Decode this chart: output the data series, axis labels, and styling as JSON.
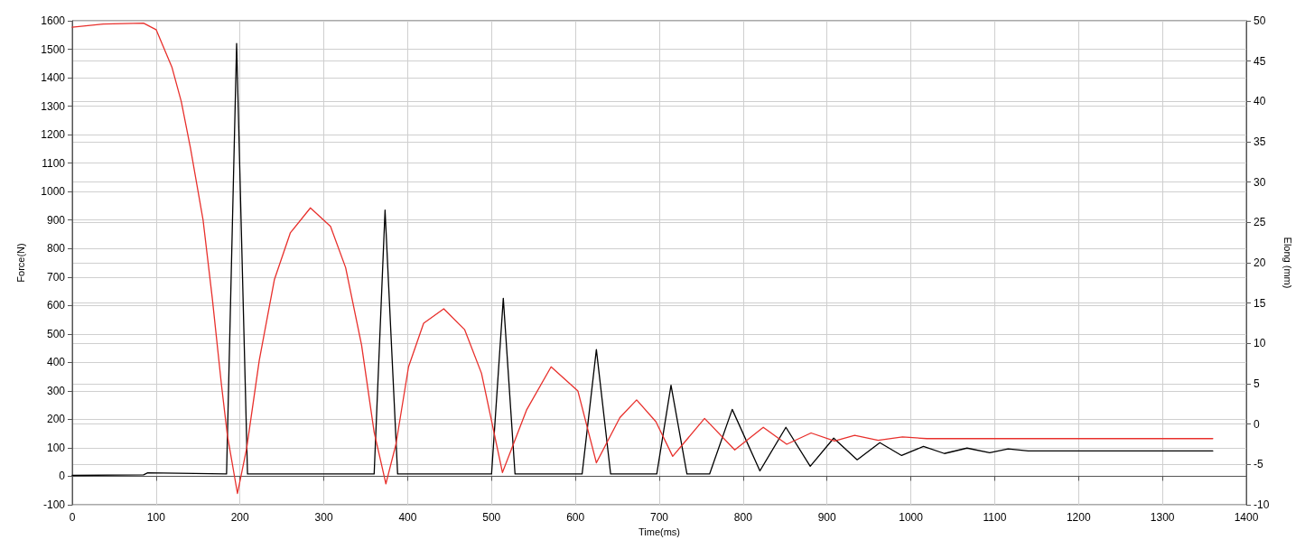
{
  "chart_data": {
    "type": "line",
    "xlabel": "Time(ms)",
    "ylabel": "Force(N)",
    "y2label": "Elong (mm)",
    "xlim": [
      0,
      1400
    ],
    "xticks": [
      0,
      100,
      200,
      300,
      400,
      500,
      600,
      700,
      800,
      900,
      1000,
      1100,
      1200,
      1300,
      1400
    ],
    "ylim": [
      -100,
      1600
    ],
    "yticks": [
      -100,
      0,
      100,
      200,
      300,
      400,
      500,
      600,
      700,
      800,
      900,
      1000,
      1100,
      1200,
      1300,
      1400,
      1500,
      1600
    ],
    "y2lim": [
      -10,
      50
    ],
    "y2ticks": [
      -10,
      -5,
      0,
      5,
      10,
      15,
      20,
      25,
      30,
      35,
      40,
      45,
      50
    ],
    "grid": true,
    "marker": "none",
    "line_style": "solid",
    "series": [
      {
        "color": "#000000",
        "x": [
          0,
          85,
          90,
          184,
          196,
          209,
          360,
          373,
          388,
          500,
          514,
          528,
          608,
          625,
          642,
          697,
          714,
          733,
          760,
          787,
          820,
          851,
          880,
          908,
          936,
          963,
          989,
          1015,
          1040,
          1067,
          1094,
          1116,
          1140,
          1360
        ],
        "values": [
          3,
          5,
          12,
          8,
          1520,
          8,
          8,
          935,
          8,
          8,
          625,
          8,
          8,
          445,
          8,
          8,
          320,
          8,
          8,
          235,
          19,
          172,
          35,
          134,
          58,
          118,
          73,
          105,
          80,
          99,
          83,
          96,
          89,
          89
        ]
      },
      {
        "color": "#e8302c",
        "axis": "y2",
        "x": [
          0,
          37,
          85,
          100,
          119,
          130,
          141,
          156,
          167,
          178,
          185,
          197,
          208,
          223,
          241,
          260,
          284,
          308,
          326,
          345,
          360,
          374,
          386,
          401,
          419,
          443,
          468,
          488,
          513,
          542,
          571,
          603,
          625,
          653,
          673,
          696,
          716,
          754,
          790,
          824,
          852,
          881,
          909,
          933,
          961,
          990,
          1019,
          1360
        ],
        "values": [
          49.2,
          49.6,
          49.7,
          48.9,
          44.2,
          40.0,
          34.2,
          25.3,
          15.6,
          4.8,
          -1.4,
          -8.6,
          -3.0,
          7.9,
          17.9,
          23.7,
          26.8,
          24.5,
          19.4,
          9.8,
          -1.0,
          -7.4,
          -2.5,
          7.1,
          12.5,
          14.3,
          11.7,
          6.3,
          -6.0,
          1.8,
          7.1,
          4.1,
          -4.8,
          0.8,
          3.0,
          0.3,
          -4.0,
          0.7,
          -3.2,
          -0.4,
          -2.5,
          -1.1,
          -2.1,
          -1.4,
          -2.0,
          -1.6,
          -1.8,
          -1.8
        ]
      }
    ]
  }
}
